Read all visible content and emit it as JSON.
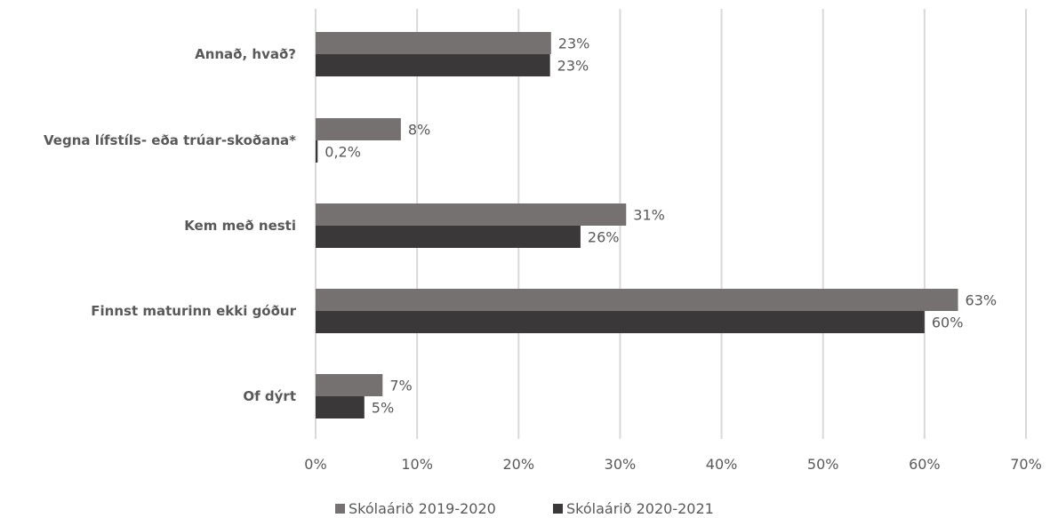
{
  "chart_data": {
    "type": "bar",
    "orientation": "horizontal",
    "categories": [
      "Annað, hvað?",
      "Vegna lífstíls- eða trúar-skoðana*",
      "Kem með nesti",
      "Finnst maturinn ekki góður",
      "Of dýrt"
    ],
    "series": [
      {
        "name": "Skólaárið 2019-2020",
        "color": "#767171",
        "values": [
          23.2,
          8.4,
          30.6,
          63.3,
          6.6
        ],
        "labels": [
          "23%",
          "8%",
          "31%",
          "63%",
          "7%"
        ]
      },
      {
        "name": "Skólaárið 2020-2021",
        "color": "#3a3838",
        "values": [
          23.1,
          0.2,
          26.1,
          60.0,
          4.8
        ],
        "labels": [
          "23%",
          "0,2%",
          "26%",
          "60%",
          "5%"
        ]
      }
    ],
    "xlim": [
      0,
      70
    ],
    "xticks": [
      0,
      10,
      20,
      30,
      40,
      50,
      60,
      70
    ],
    "xtick_labels": [
      "0%",
      "10%",
      "20%",
      "30%",
      "40%",
      "50%",
      "60%",
      "70%"
    ],
    "grid": "vertical",
    "legend": "bottom"
  }
}
